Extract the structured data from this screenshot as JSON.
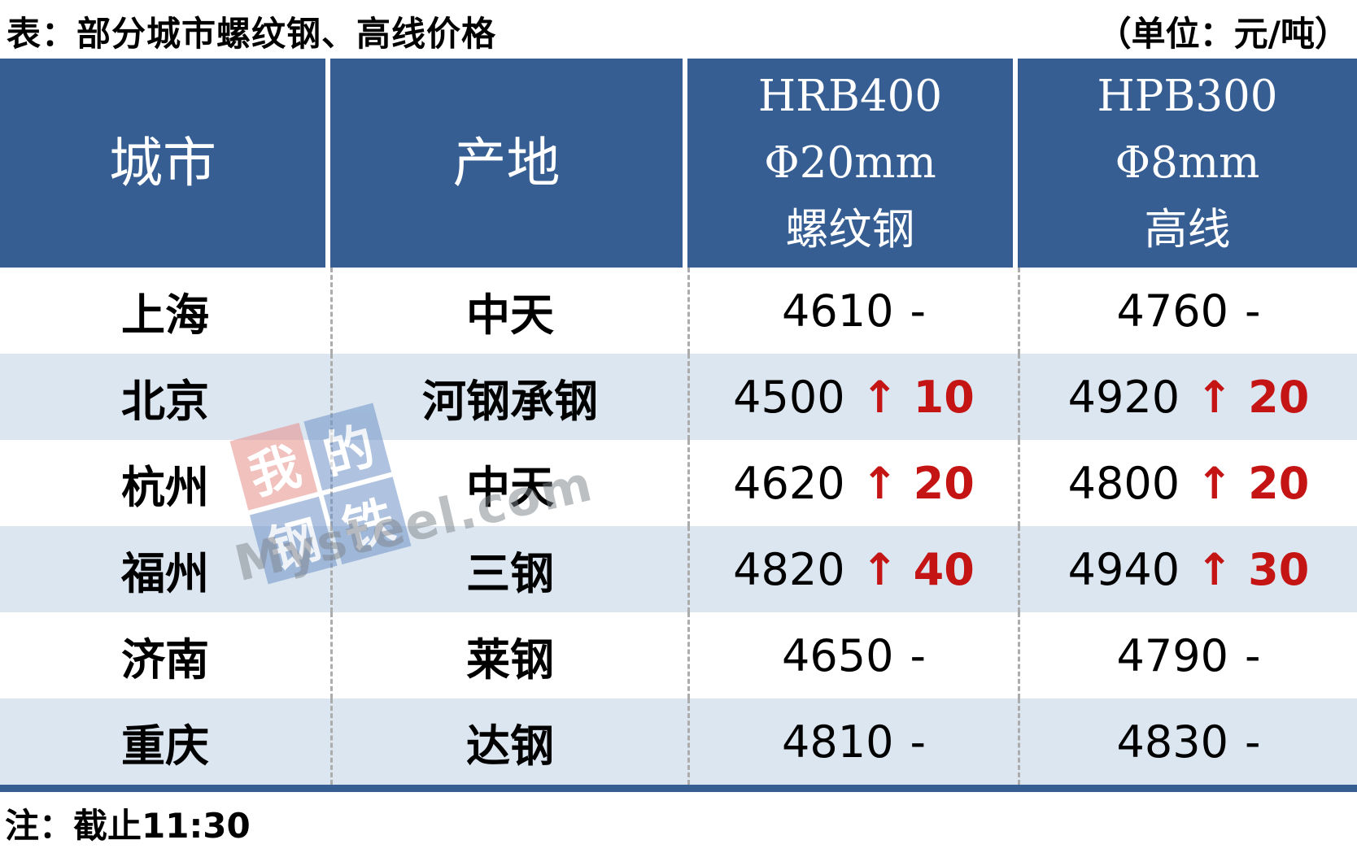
{
  "title": "表：部分城市螺纹钢、高线价格",
  "unit": "（单位：元/吨）",
  "note": "注：截止11:30",
  "colors": {
    "header_bg": "#365E92",
    "alt_row_bg": "#DCE6F1",
    "change_up_red": "#C41414",
    "bottom_border": "#365E92"
  },
  "watermark": {
    "tiles": [
      "我",
      "的",
      "钢",
      "铁"
    ],
    "text": "Mysteel.com"
  },
  "table": {
    "headers": [
      {
        "lines": [
          "城市"
        ]
      },
      {
        "lines": [
          "产地"
        ]
      },
      {
        "lines": [
          "HRB400",
          "Φ20mm",
          "螺纹钢"
        ]
      },
      {
        "lines": [
          "HPB300",
          "Φ8mm",
          "高线"
        ]
      }
    ],
    "rows": [
      {
        "city": "上海",
        "origin": "中天",
        "hrb400": {
          "price": "4610",
          "change": "-"
        },
        "hpb300": {
          "price": "4760",
          "change": "-"
        }
      },
      {
        "city": "北京",
        "origin": "河钢承钢",
        "hrb400": {
          "price": "4500",
          "change": "↑ 10"
        },
        "hpb300": {
          "price": "4920",
          "change": "↑ 20"
        }
      },
      {
        "city": "杭州",
        "origin": "中天",
        "hrb400": {
          "price": "4620",
          "change": "↑ 20"
        },
        "hpb300": {
          "price": "4800",
          "change": "↑ 20"
        }
      },
      {
        "city": "福州",
        "origin": "三钢",
        "hrb400": {
          "price": "4820",
          "change": "↑ 40"
        },
        "hpb300": {
          "price": "4940",
          "change": "↑ 30"
        }
      },
      {
        "city": "济南",
        "origin": "莱钢",
        "hrb400": {
          "price": "4650",
          "change": "-"
        },
        "hpb300": {
          "price": "4790",
          "change": "-"
        }
      },
      {
        "city": "重庆",
        "origin": "达钢",
        "hrb400": {
          "price": "4810",
          "change": "-"
        },
        "hpb300": {
          "price": "4830",
          "change": "-"
        }
      }
    ]
  },
  "chart_data": {
    "type": "table",
    "title": "表：部分城市螺纹钢、高线价格",
    "unit": "元/吨",
    "columns": [
      "城市",
      "产地",
      "HRB400 Φ20mm 螺纹钢",
      "HPB300 Φ8mm 高线"
    ],
    "rows": [
      [
        "上海",
        "中天",
        "4610 -",
        "4760 -"
      ],
      [
        "北京",
        "河钢承钢",
        "4500 ↑10",
        "4920 ↑20"
      ],
      [
        "杭州",
        "中天",
        "4620 ↑20",
        "4800 ↑20"
      ],
      [
        "福州",
        "三钢",
        "4820 ↑40",
        "4940 ↑30"
      ],
      [
        "济南",
        "莱钢",
        "4650 -",
        "4790 -"
      ],
      [
        "重庆",
        "达钢",
        "4810 -",
        "4830 -"
      ]
    ],
    "note": "截止11:30"
  }
}
